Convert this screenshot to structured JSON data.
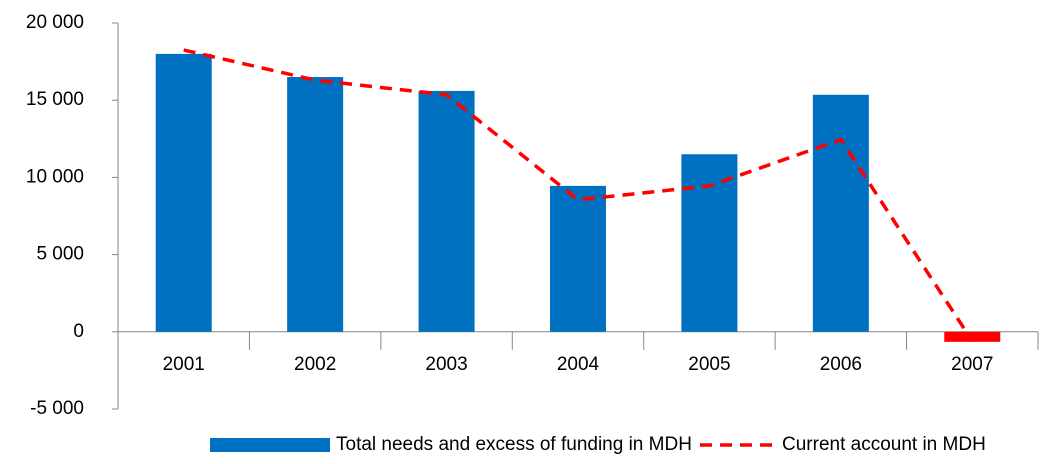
{
  "chart_data": {
    "type": "bar_line",
    "categories": [
      "2001",
      "2002",
      "2003",
      "2004",
      "2005",
      "2006",
      "2007"
    ],
    "series": [
      {
        "name": "Total needs and excess of funding in MDH",
        "type": "bar",
        "color": "#0070c0",
        "colors": [
          "#0070c0",
          "#0070c0",
          "#0070c0",
          "#0070c0",
          "#0070c0",
          "#0070c0",
          "#ff0000"
        ],
        "values": [
          18000,
          16500,
          15600,
          9450,
          11500,
          15350,
          -650
        ]
      },
      {
        "name": "Current account in MDH",
        "type": "line",
        "color": "#ff0000",
        "dashed": true,
        "values": [
          18250,
          16300,
          15350,
          8550,
          9450,
          12450,
          -600
        ]
      }
    ],
    "ylim": [
      -5000,
      20000
    ],
    "yticks": [
      {
        "value": -5000,
        "label": "-5 000"
      },
      0,
      {
        "value": 5000,
        "label": "5 000"
      },
      {
        "value": 10000,
        "label": "10 000"
      },
      {
        "value": 15000,
        "label": "15 000"
      },
      {
        "value": 20000,
        "label": "20 000"
      }
    ],
    "legend": "bottom"
  }
}
